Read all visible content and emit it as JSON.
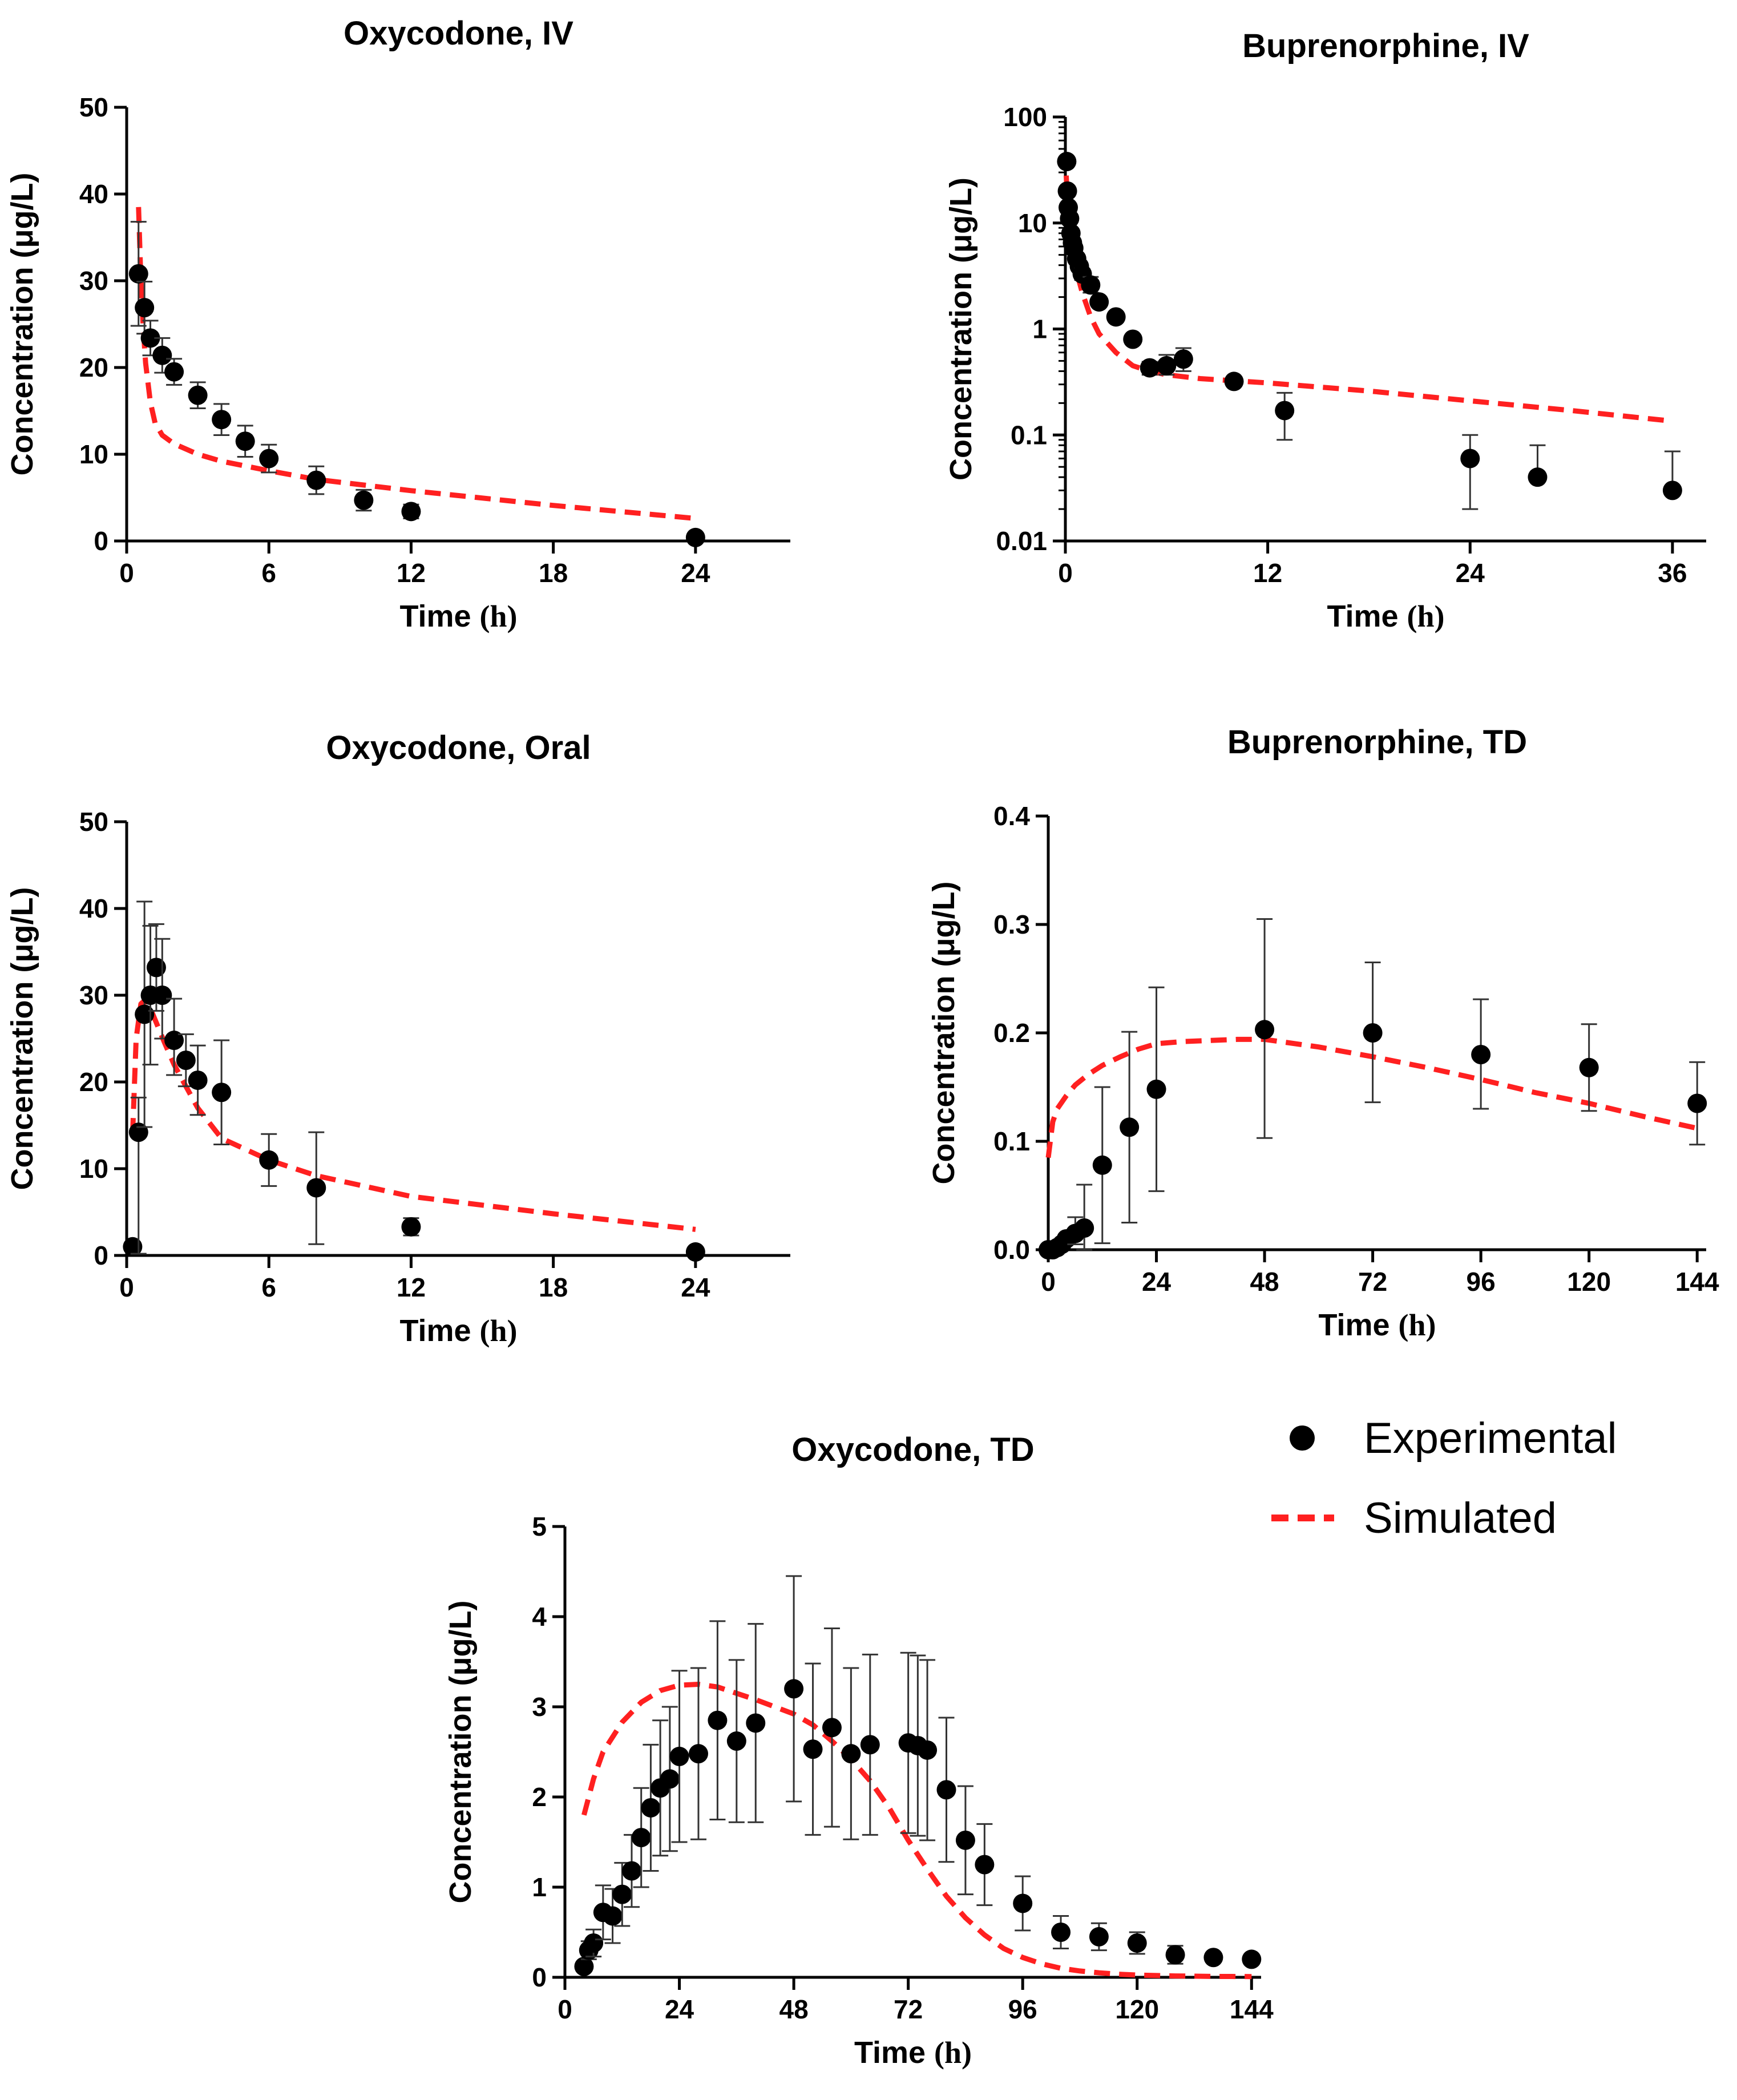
{
  "colors": {
    "experimental": "#000000",
    "simulated": "#ff2020",
    "axis": "#000000"
  },
  "legend": {
    "experimental_label": "Experimental",
    "simulated_label": "Simulated"
  },
  "chart_data": [
    {
      "id": "oxy-iv",
      "type": "scatter",
      "title": "Oxycodone, IV",
      "ylabel": "Concentration (μg/L)",
      "xlabel": "Time",
      "xunit": "(h)",
      "yscale": "linear",
      "xlim": [
        0,
        28
      ],
      "ylim": [
        0,
        50
      ],
      "xticks": [
        0,
        6,
        12,
        18,
        24
      ],
      "yticks": [
        0,
        10,
        20,
        30,
        40,
        50
      ],
      "ytick_labels": [
        "0",
        "10",
        "20",
        "30",
        "40",
        "50"
      ],
      "series": [
        {
          "name": "Experimental",
          "x": [
            0.5,
            0.75,
            1,
            1.5,
            2,
            3,
            4,
            5,
            6,
            8,
            10,
            12,
            24
          ],
          "y": [
            30.8,
            26.9,
            23.4,
            21.4,
            19.5,
            16.8,
            14.0,
            11.5,
            9.5,
            7.0,
            4.7,
            3.4,
            0.4
          ],
          "err_low": [
            6,
            3,
            2,
            2,
            1.5,
            1.5,
            1.8,
            1.8,
            1.6,
            1.6,
            1.2,
            0.8,
            0
          ],
          "err_high": [
            6,
            3,
            2,
            2,
            1.5,
            1.5,
            1.8,
            1.8,
            1.6,
            1.6,
            1.2,
            0.8,
            0
          ]
        },
        {
          "name": "Simulated",
          "x": [
            0.5,
            0.6,
            0.7,
            0.8,
            1.0,
            1.2,
            1.5,
            2,
            3,
            4,
            6,
            8,
            12,
            18,
            24
          ],
          "y": [
            38.5,
            30.0,
            24.5,
            20.5,
            16.0,
            13.6,
            12.2,
            11.2,
            10.0,
            9.2,
            8.1,
            7.1,
            5.8,
            4.1,
            2.6
          ]
        }
      ]
    },
    {
      "id": "bup-iv",
      "type": "scatter",
      "title": "Buprenorphine, IV",
      "ylabel": "Concentration (μg/L)",
      "xlabel": "Time",
      "xunit": "(h)",
      "yscale": "log",
      "xlim": [
        0,
        38
      ],
      "ylim": [
        0.01,
        100
      ],
      "xticks": [
        0,
        12,
        24,
        36
      ],
      "yticks": [
        0.01,
        0.1,
        1,
        10,
        100
      ],
      "ytick_labels": [
        "0.01",
        "0.1",
        "1",
        "10",
        "100"
      ],
      "series": [
        {
          "name": "Experimental",
          "x": [
            0.08,
            0.12,
            0.17,
            0.25,
            0.33,
            0.42,
            0.5,
            0.67,
            0.83,
            1,
            1.5,
            2,
            3,
            4,
            5,
            6,
            7,
            10,
            13,
            24,
            28,
            36
          ],
          "y": [
            38,
            20,
            14,
            11,
            8.0,
            6.5,
            5.8,
            4.6,
            3.9,
            3.3,
            2.6,
            1.8,
            1.3,
            0.8,
            0.43,
            0.45,
            0.52,
            0.32,
            0.17,
            0.06,
            0.04,
            0.03
          ],
          "err_low": [
            0,
            0,
            0,
            0,
            0,
            0,
            0,
            0,
            0,
            0.4,
            0.4,
            0,
            0,
            0,
            0.06,
            0.08,
            0.12,
            0,
            0.08,
            0.04,
            0,
            0
          ],
          "err_high": [
            0,
            0,
            0,
            0,
            0,
            0,
            0,
            0,
            0,
            0.4,
            0.5,
            0,
            0,
            0,
            0.06,
            0.12,
            0.14,
            0,
            0.08,
            0.04,
            0.04,
            0.04
          ]
        },
        {
          "name": "Simulated",
          "x": [
            0.05,
            0.2,
            0.4,
            0.7,
            1.0,
            1.5,
            2,
            3,
            4,
            5,
            6,
            8,
            12,
            18,
            24,
            30,
            36
          ],
          "y": [
            28,
            9,
            5,
            3.3,
            2.2,
            1.3,
            0.9,
            0.6,
            0.45,
            0.4,
            0.37,
            0.34,
            0.31,
            0.26,
            0.21,
            0.17,
            0.135
          ]
        }
      ]
    },
    {
      "id": "oxy-oral",
      "type": "scatter",
      "title": "Oxycodone, Oral",
      "ylabel": "Concentration (μg/L)",
      "xlabel": "Time",
      "xunit": "(h)",
      "yscale": "linear",
      "xlim": [
        0,
        28
      ],
      "ylim": [
        0,
        50
      ],
      "xticks": [
        0,
        6,
        12,
        18,
        24
      ],
      "yticks": [
        0,
        10,
        20,
        30,
        40,
        50
      ],
      "ytick_labels": [
        "0",
        "10",
        "20",
        "30",
        "40",
        "50"
      ],
      "series": [
        {
          "name": "Experimental",
          "x": [
            0.25,
            0.5,
            0.75,
            1,
            1.25,
            1.5,
            2,
            2.5,
            3,
            4,
            6,
            8,
            12,
            24
          ],
          "y": [
            1.0,
            14.2,
            27.8,
            30.0,
            33.2,
            30.0,
            24.8,
            22.5,
            20.2,
            18.8,
            11.0,
            7.8,
            3.3,
            0.4
          ],
          "err_low": [
            0,
            14,
            13,
            8,
            5,
            5,
            4,
            3,
            4,
            6,
            3,
            6.5,
            1,
            0
          ],
          "err_high": [
            0,
            4,
            13,
            8,
            5,
            6.5,
            4.8,
            3,
            4,
            6,
            3,
            6.4,
            1,
            0
          ]
        },
        {
          "name": "Simulated",
          "x": [
            0.25,
            0.4,
            0.6,
            0.8,
            1,
            1.3,
            1.6,
            2,
            2.5,
            3,
            4,
            6,
            8,
            12,
            18,
            24
          ],
          "y": [
            14,
            25,
            29,
            29.5,
            28.5,
            26.5,
            24.5,
            22,
            19.5,
            17,
            13.5,
            11,
            9.2,
            6.8,
            4.8,
            3.0
          ]
        }
      ]
    },
    {
      "id": "bup-td",
      "type": "scatter",
      "title": "Buprenorphine, TD",
      "ylabel": "Concentration (μg/L)",
      "xlabel": "Time",
      "xunit": "(h)",
      "yscale": "linear",
      "xlim": [
        0,
        146
      ],
      "ylim": [
        0,
        0.4
      ],
      "xticks": [
        0,
        24,
        48,
        72,
        96,
        120,
        144
      ],
      "yticks": [
        0,
        0.1,
        0.2,
        0.3,
        0.4
      ],
      "ytick_labels": [
        "0.0",
        "0.1",
        "0.2",
        "0.3",
        "0.4"
      ],
      "series": [
        {
          "name": "Experimental",
          "x": [
            0,
            1,
            2,
            3,
            4,
            6,
            8,
            12,
            18,
            24,
            48,
            72,
            96,
            120,
            144
          ],
          "y": [
            0.0,
            0.0,
            0.002,
            0.005,
            0.01,
            0.015,
            0.02,
            0.078,
            0.113,
            0.148,
            0.203,
            0.2,
            0.18,
            0.168,
            0.135
          ],
          "err_low": [
            0,
            0,
            0,
            0,
            0,
            0.01,
            0.02,
            0.072,
            0.088,
            0.094,
            0.1,
            0.064,
            0.05,
            0.04,
            0.038
          ],
          "err_high": [
            0,
            0,
            0,
            0,
            0,
            0.015,
            0.04,
            0.072,
            0.088,
            0.094,
            0.102,
            0.065,
            0.051,
            0.04,
            0.038
          ]
        },
        {
          "name": "Simulated",
          "x": [
            0,
            1,
            2,
            4,
            6,
            9,
            12,
            16,
            20,
            24,
            30,
            36,
            42,
            48,
            60,
            72,
            84,
            96,
            108,
            120,
            132,
            144
          ],
          "y": [
            0.085,
            0.118,
            0.13,
            0.142,
            0.152,
            0.162,
            0.17,
            0.178,
            0.185,
            0.19,
            0.192,
            0.193,
            0.194,
            0.194,
            0.187,
            0.178,
            0.168,
            0.157,
            0.145,
            0.135,
            0.123,
            0.112
          ]
        }
      ]
    },
    {
      "id": "oxy-td",
      "type": "scatter",
      "title": "Oxycodone, TD",
      "ylabel": "Concentration (μg/L)",
      "xlabel": "Time",
      "xunit": "(h)",
      "yscale": "linear",
      "xlim": [
        0,
        146
      ],
      "ylim": [
        0,
        5
      ],
      "xticks": [
        0,
        24,
        48,
        72,
        96,
        120,
        144
      ],
      "yticks": [
        0,
        1,
        2,
        3,
        4,
        5
      ],
      "ytick_labels": [
        "0",
        "1",
        "2",
        "3",
        "4",
        "5"
      ],
      "series": [
        {
          "name": "Experimental",
          "x": [
            4,
            5,
            6,
            8,
            10,
            12,
            14,
            16,
            18,
            20,
            22,
            24,
            28,
            32,
            36,
            40,
            48,
            52,
            56,
            60,
            64,
            72,
            74,
            76,
            80,
            84,
            88,
            96,
            104,
            112,
            120,
            128,
            136,
            144
          ],
          "y": [
            0.12,
            0.3,
            0.38,
            0.72,
            0.68,
            0.92,
            1.18,
            1.55,
            1.88,
            2.1,
            2.2,
            2.45,
            2.48,
            2.85,
            2.62,
            2.82,
            3.2,
            2.53,
            2.77,
            2.48,
            2.58,
            2.6,
            2.57,
            2.52,
            2.08,
            1.52,
            1.25,
            0.82,
            0.5,
            0.45,
            0.38,
            0.25,
            0.22,
            0.2
          ],
          "err_low": [
            0.05,
            0.1,
            0.15,
            0.3,
            0.3,
            0.35,
            0.4,
            0.55,
            0.7,
            0.75,
            0.8,
            0.95,
            0.95,
            1.1,
            0.9,
            1.1,
            1.25,
            0.95,
            1.1,
            0.95,
            1.0,
            1.0,
            1.0,
            1.0,
            0.8,
            0.6,
            0.45,
            0.3,
            0.18,
            0.15,
            0.12,
            0.1,
            0.05,
            0.05
          ],
          "err_high": [
            0.05,
            0.1,
            0.15,
            0.3,
            0.3,
            0.35,
            0.4,
            0.55,
            0.7,
            0.75,
            0.8,
            0.95,
            0.95,
            1.1,
            0.9,
            1.1,
            1.25,
            0.95,
            1.1,
            0.95,
            1.0,
            1.0,
            1.0,
            1.0,
            0.8,
            0.6,
            0.45,
            0.3,
            0.18,
            0.15,
            0.12,
            0.1,
            0.05,
            0.05
          ]
        },
        {
          "name": "Simulated",
          "x": [
            4,
            6,
            8,
            12,
            16,
            20,
            24,
            28,
            32,
            36,
            40,
            44,
            48,
            52,
            56,
            60,
            64,
            68,
            72,
            76,
            80,
            84,
            88,
            92,
            96,
            100,
            104,
            108,
            112,
            116,
            120,
            128,
            136,
            144
          ],
          "y": [
            1.8,
            2.2,
            2.5,
            2.83,
            3.05,
            3.18,
            3.24,
            3.25,
            3.22,
            3.15,
            3.08,
            3.0,
            2.92,
            2.8,
            2.62,
            2.42,
            2.18,
            1.88,
            1.52,
            1.2,
            0.9,
            0.66,
            0.47,
            0.32,
            0.22,
            0.15,
            0.1,
            0.07,
            0.05,
            0.035,
            0.025,
            0.015,
            0.01,
            0.008
          ]
        }
      ]
    }
  ]
}
